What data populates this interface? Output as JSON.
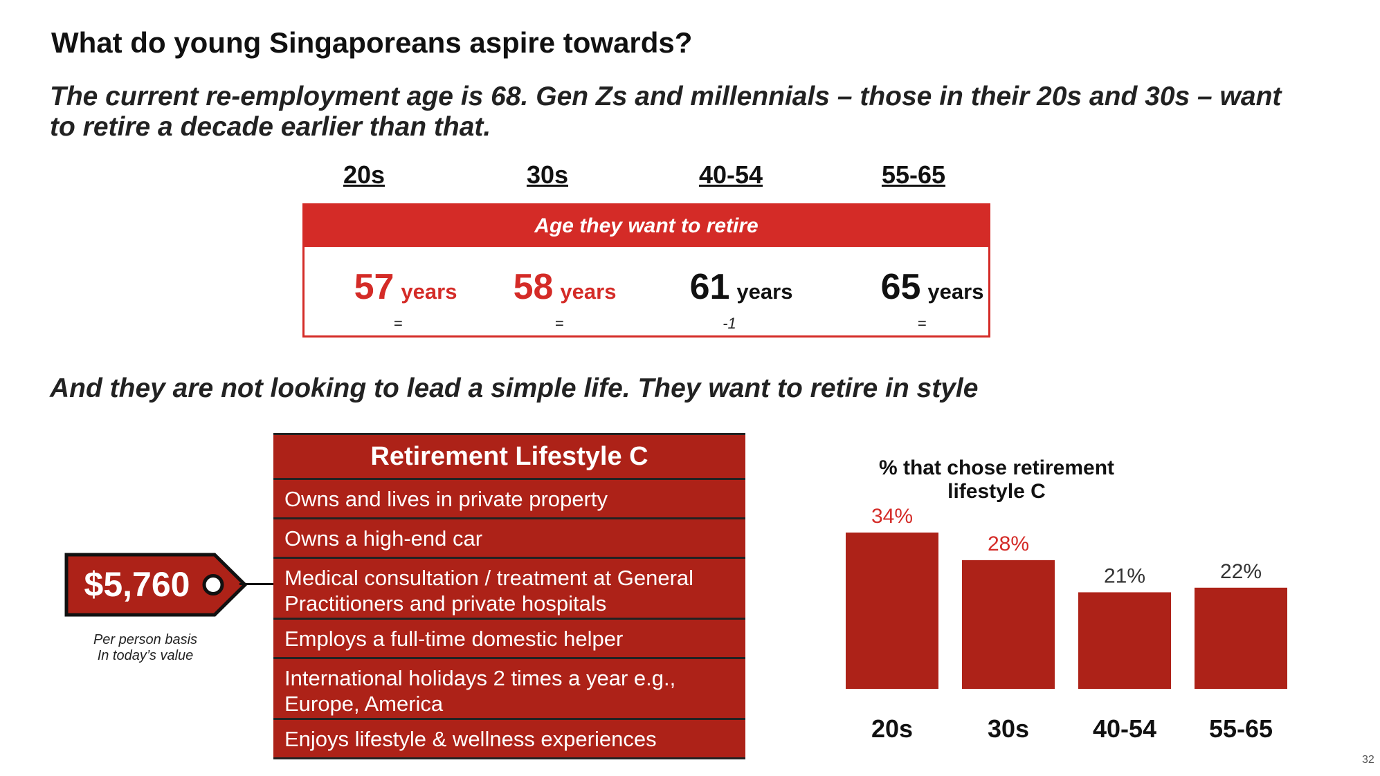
{
  "title": "What do young Singaporeans aspire towards?",
  "subtitle": "The current re-employment age is 68. Gen Zs and millennials – those in their 20s and 30s – want to retire a decade earlier than that.",
  "retirement_age": {
    "header": "Age they want to retire",
    "groups": [
      {
        "label": "20s",
        "age": "57",
        "unit": "years",
        "change": "="
      },
      {
        "label": "30s",
        "age": "58",
        "unit": "years",
        "change": "="
      },
      {
        "label": "40-54",
        "age": "61",
        "unit": "years",
        "change": "-1"
      },
      {
        "label": "55-65",
        "age": "65",
        "unit": "years",
        "change": "="
      }
    ],
    "colors": {
      "highlight": "#d42b27",
      "normal": "#111111"
    }
  },
  "subtitle2": "And they are not looking to lead a simple life. They want to retire in style",
  "lifestyle": {
    "title": "Retirement Lifestyle C",
    "items": [
      "Owns and lives in private property",
      "Owns a high-end car",
      "Medical consultation / treatment at General Practitioners and private hospitals",
      "Employs a full-time domestic helper",
      "International holidays 2 times a year e.g., Europe, America",
      "Enjoys lifestyle & wellness experiences"
    ],
    "color": "#ad2218"
  },
  "price_tag": {
    "value": "$5,760",
    "caption_line1": "Per person basis",
    "caption_line2": "In today’s value",
    "icon": "price-tag-icon"
  },
  "chart_data": {
    "type": "bar",
    "title": "% that chose retirement lifestyle C",
    "categories": [
      "20s",
      "30s",
      "40-54",
      "55-65"
    ],
    "values": [
      34,
      28,
      21,
      22
    ],
    "value_labels": [
      "34%",
      "28%",
      "21%",
      "22%"
    ],
    "label_colors": [
      "#d42b27",
      "#d42b27",
      "#333333",
      "#333333"
    ],
    "bar_color": "#ad2218",
    "ylim": [
      0,
      34
    ],
    "grid": false
  },
  "page_number": "32"
}
